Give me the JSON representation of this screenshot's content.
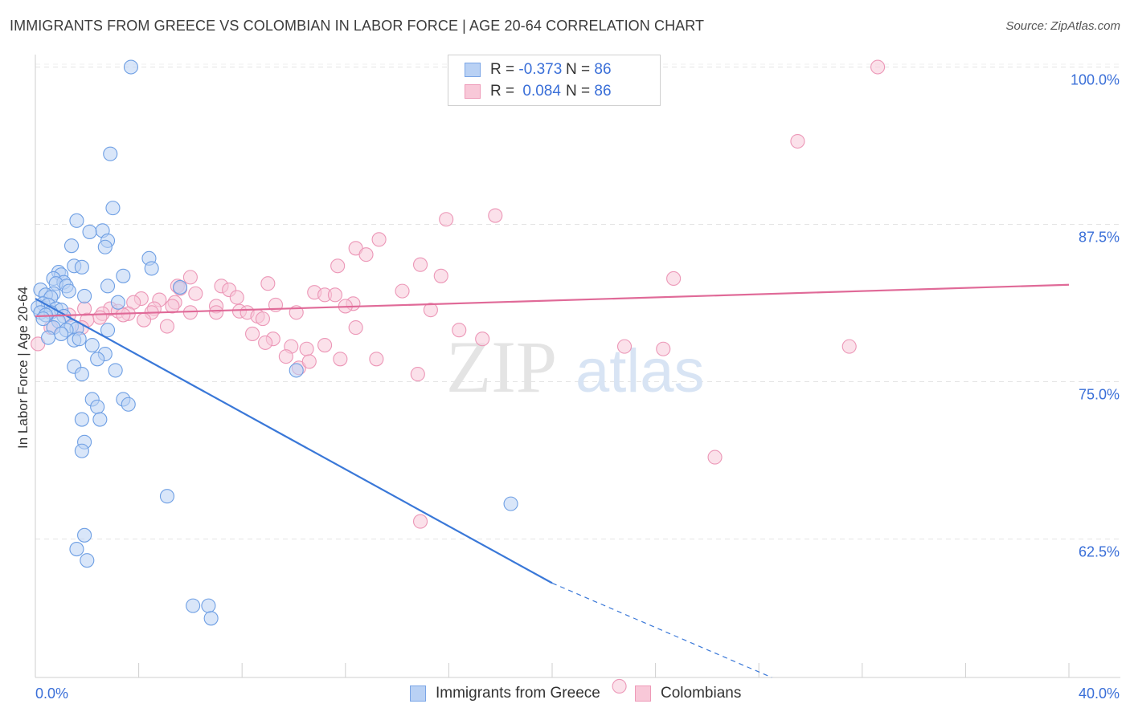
{
  "title": "IMMIGRANTS FROM GREECE VS COLOMBIAN IN LABOR FORCE | AGE 20-64 CORRELATION CHART",
  "source": "Source: ZipAtlas.com",
  "watermark": {
    "zip": "ZIP",
    "atlas": "atlas"
  },
  "colors": {
    "blue": "#3a78d8",
    "blue_fill": "#b9d1f4",
    "pink": "#e06a98",
    "pink_fill": "#f8c8d8",
    "axis_label": "#3a6fd8",
    "grid": "#e4e4e4"
  },
  "legend": {
    "rows": [
      {
        "r_label": "R =",
        "r_value": "-0.373",
        "n_label": "N =",
        "n_value": "86"
      },
      {
        "r_label": "R =",
        "r_value": "0.084",
        "n_label": "N =",
        "n_value": "86"
      }
    ]
  },
  "bottom_legend": [
    "Immigrants from Greece",
    "Colombians"
  ],
  "chart_data": {
    "type": "scatter",
    "xlabel": "",
    "ylabel": "In Labor Force | Age 20-64",
    "xlim": [
      0,
      40
    ],
    "ylim": [
      51.5,
      101.5
    ],
    "x_tick_labels": [
      {
        "value": 0,
        "label": "0.0%"
      },
      {
        "value": 40,
        "label": "40.0%"
      }
    ],
    "y_ticks": [
      {
        "value": 100,
        "label": "100.0%"
      },
      {
        "value": 87.5,
        "label": "87.5%"
      },
      {
        "value": 75,
        "label": "75.0%"
      },
      {
        "value": 62.5,
        "label": "62.5%"
      }
    ],
    "x_minor_ticks": [
      4,
      8,
      12,
      16,
      20,
      24,
      28,
      32,
      36,
      40
    ],
    "grid": true,
    "legend_position": "top-center",
    "series": [
      {
        "name": "Immigrants from Greece",
        "color": "#3a78d8",
        "points": [
          [
            3.7,
            100.0
          ],
          [
            2.9,
            93.1
          ],
          [
            3.0,
            88.8
          ],
          [
            1.6,
            87.8
          ],
          [
            2.6,
            87.0
          ],
          [
            2.1,
            86.9
          ],
          [
            2.8,
            86.2
          ],
          [
            1.4,
            85.8
          ],
          [
            2.7,
            85.7
          ],
          [
            4.4,
            84.8
          ],
          [
            1.5,
            84.2
          ],
          [
            1.8,
            84.1
          ],
          [
            4.5,
            84.0
          ],
          [
            0.9,
            83.7
          ],
          [
            1.0,
            83.5
          ],
          [
            3.4,
            83.4
          ],
          [
            0.7,
            83.2
          ],
          [
            1.1,
            82.9
          ],
          [
            0.8,
            82.8
          ],
          [
            1.2,
            82.6
          ],
          [
            2.8,
            82.6
          ],
          [
            5.6,
            82.5
          ],
          [
            0.2,
            82.3
          ],
          [
            1.3,
            82.2
          ],
          [
            0.7,
            82.0
          ],
          [
            0.4,
            81.9
          ],
          [
            0.6,
            81.7
          ],
          [
            1.9,
            81.8
          ],
          [
            3.2,
            81.3
          ],
          [
            0.3,
            81.2
          ],
          [
            0.5,
            81.1
          ],
          [
            0.1,
            80.9
          ],
          [
            0.8,
            80.8
          ],
          [
            1.0,
            80.7
          ],
          [
            0.2,
            80.5
          ],
          [
            0.6,
            80.5
          ],
          [
            0.4,
            80.3
          ],
          [
            1.1,
            80.2
          ],
          [
            0.3,
            80.0
          ],
          [
            0.9,
            79.8
          ],
          [
            1.4,
            79.4
          ],
          [
            0.7,
            79.3
          ],
          [
            1.6,
            79.2
          ],
          [
            1.2,
            79.1
          ],
          [
            2.8,
            79.1
          ],
          [
            1.0,
            78.8
          ],
          [
            0.5,
            78.5
          ],
          [
            1.5,
            78.3
          ],
          [
            1.7,
            78.4
          ],
          [
            2.2,
            77.9
          ],
          [
            2.7,
            77.2
          ],
          [
            2.4,
            76.8
          ],
          [
            1.5,
            76.2
          ],
          [
            3.1,
            75.9
          ],
          [
            10.1,
            75.9
          ],
          [
            1.8,
            75.6
          ],
          [
            2.2,
            73.6
          ],
          [
            3.4,
            73.6
          ],
          [
            2.4,
            73.0
          ],
          [
            3.6,
            73.2
          ],
          [
            1.8,
            72.0
          ],
          [
            2.5,
            72.0
          ],
          [
            1.9,
            70.2
          ],
          [
            1.8,
            69.5
          ],
          [
            5.1,
            65.9
          ],
          [
            18.4,
            65.3
          ],
          [
            1.9,
            62.8
          ],
          [
            1.6,
            61.7
          ],
          [
            2.0,
            60.8
          ],
          [
            6.1,
            57.2
          ],
          [
            6.7,
            57.2
          ],
          [
            6.8,
            56.2
          ]
        ],
        "trend": {
          "x0": 0,
          "y0": 81.6,
          "x1": 20.0,
          "y1": 59.0,
          "dash_x1": 28.5,
          "dash_y1": 51.5
        }
      },
      {
        "name": "Colombians",
        "color": "#e06a98",
        "points": [
          [
            19.8,
            100.0
          ],
          [
            32.6,
            100.0
          ],
          [
            29.5,
            94.1
          ],
          [
            15.9,
            87.9
          ],
          [
            17.8,
            88.2
          ],
          [
            13.3,
            86.3
          ],
          [
            12.4,
            85.6
          ],
          [
            12.8,
            85.1
          ],
          [
            14.9,
            84.3
          ],
          [
            11.7,
            84.2
          ],
          [
            15.7,
            83.4
          ],
          [
            6.0,
            83.3
          ],
          [
            24.7,
            83.2
          ],
          [
            9.0,
            82.8
          ],
          [
            5.5,
            82.6
          ],
          [
            7.2,
            82.6
          ],
          [
            5.6,
            82.4
          ],
          [
            14.2,
            82.2
          ],
          [
            7.5,
            82.3
          ],
          [
            10.8,
            82.1
          ],
          [
            11.2,
            81.9
          ],
          [
            6.2,
            82.0
          ],
          [
            11.6,
            81.9
          ],
          [
            7.8,
            81.7
          ],
          [
            4.1,
            81.6
          ],
          [
            4.8,
            81.5
          ],
          [
            3.8,
            81.3
          ],
          [
            5.4,
            81.3
          ],
          [
            12.3,
            81.2
          ],
          [
            9.3,
            81.1
          ],
          [
            12.0,
            81.0
          ],
          [
            5.3,
            81.0
          ],
          [
            7.0,
            81.0
          ],
          [
            4.6,
            80.8
          ],
          [
            1.9,
            80.8
          ],
          [
            2.9,
            80.8
          ],
          [
            15.3,
            80.7
          ],
          [
            3.2,
            80.6
          ],
          [
            7.9,
            80.6
          ],
          [
            8.2,
            80.5
          ],
          [
            10.1,
            80.5
          ],
          [
            6.0,
            80.5
          ],
          [
            7.0,
            80.5
          ],
          [
            4.5,
            80.5
          ],
          [
            3.6,
            80.4
          ],
          [
            2.6,
            80.4
          ],
          [
            3.4,
            80.3
          ],
          [
            1.3,
            80.3
          ],
          [
            8.6,
            80.2
          ],
          [
            2.5,
            80.1
          ],
          [
            8.8,
            80.0
          ],
          [
            2.0,
            79.9
          ],
          [
            4.2,
            79.9
          ],
          [
            5.1,
            79.4
          ],
          [
            1.8,
            79.3
          ],
          [
            12.4,
            79.3
          ],
          [
            16.4,
            79.1
          ],
          [
            0.6,
            79.3
          ],
          [
            8.4,
            78.8
          ],
          [
            9.2,
            78.4
          ],
          [
            17.3,
            78.4
          ],
          [
            8.9,
            78.1
          ],
          [
            0.1,
            78.0
          ],
          [
            11.2,
            77.9
          ],
          [
            9.9,
            77.8
          ],
          [
            22.8,
            77.8
          ],
          [
            24.3,
            77.6
          ],
          [
            31.5,
            77.8
          ],
          [
            10.5,
            77.6
          ],
          [
            9.7,
            77.0
          ],
          [
            11.8,
            76.8
          ],
          [
            13.2,
            76.8
          ],
          [
            10.2,
            76.1
          ],
          [
            10.6,
            76.6
          ],
          [
            14.8,
            75.6
          ],
          [
            26.3,
            69.0
          ],
          [
            14.9,
            63.9
          ],
          [
            22.6,
            50.8
          ]
        ],
        "trend": {
          "x0": 0,
          "y0": 80.2,
          "x1": 40.0,
          "y1": 82.7
        }
      }
    ]
  }
}
